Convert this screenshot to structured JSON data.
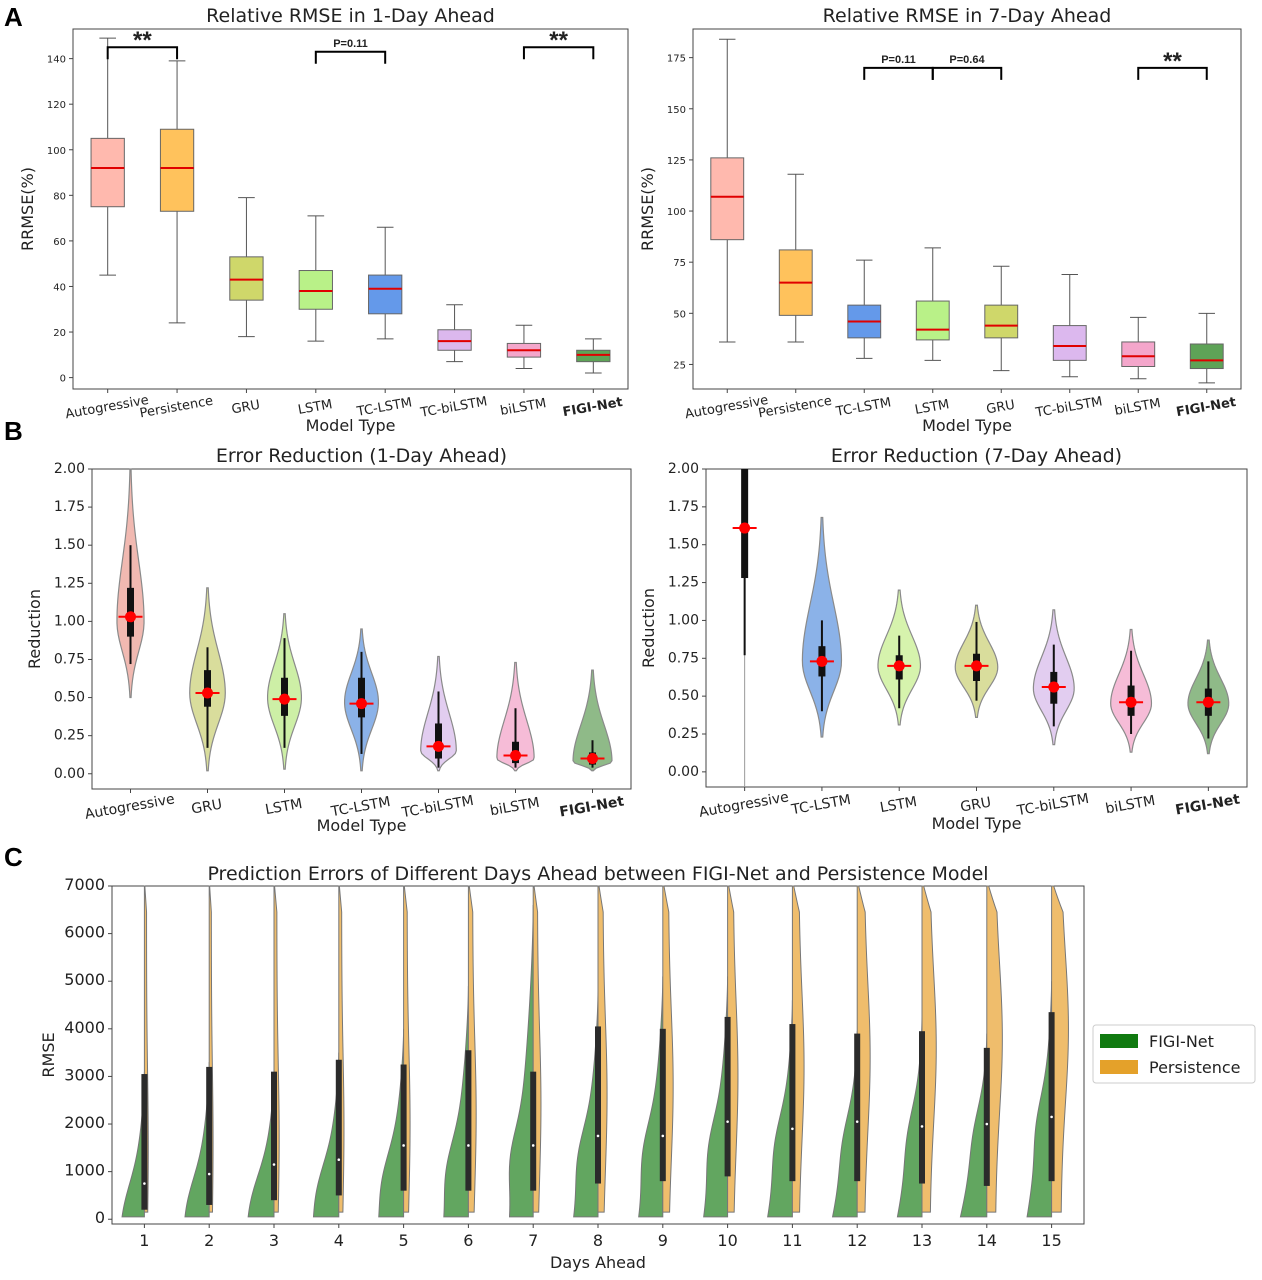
{
  "panels": {
    "a": "A",
    "b": "B",
    "c": "C"
  },
  "chart_data": [
    {
      "type": "box",
      "title": "Relative RMSE in 1-Day Ahead",
      "xlabel": "Model Type",
      "ylabel": "RRMSE(%)",
      "ylim": [
        -5,
        153
      ],
      "yticks": [
        0,
        20,
        40,
        60,
        80,
        100,
        120,
        140
      ],
      "categories": [
        "Autogressive",
        "Persistence",
        "GRU",
        "LSTM",
        "TC-LSTM",
        "TC-biLSTM",
        "biLSTM",
        "FIGI-Net"
      ],
      "bold_category": "FIGI-Net",
      "boxes": [
        {
          "min": 45,
          "q1": 75,
          "median": 92,
          "q3": 105,
          "max": 149,
          "color": "#ffb9ae"
        },
        {
          "min": 24,
          "q1": 73,
          "median": 92,
          "q3": 109,
          "max": 139,
          "color": "#ffc25c"
        },
        {
          "min": 18,
          "q1": 34,
          "median": 43,
          "q3": 53,
          "max": 79,
          "color": "#cfd76a"
        },
        {
          "min": 16,
          "q1": 30,
          "median": 38,
          "q3": 47,
          "max": 71,
          "color": "#b9f188"
        },
        {
          "min": 17,
          "q1": 28,
          "median": 39,
          "q3": 45,
          "max": 66,
          "color": "#6499ea"
        },
        {
          "min": 7,
          "q1": 12,
          "median": 16,
          "q3": 21,
          "max": 32,
          "color": "#dcb8ee"
        },
        {
          "min": 4,
          "q1": 9,
          "median": 12,
          "q3": 15,
          "max": 23,
          "color": "#f4a6cb"
        },
        {
          "min": 2,
          "q1": 7,
          "median": 10,
          "q3": 12,
          "max": 17,
          "color": "#5ea357"
        }
      ],
      "brackets": [
        {
          "from": 0,
          "to": 1,
          "label": "**",
          "y": 145
        },
        {
          "from": 3,
          "to": 4,
          "label": "P=0.11",
          "y": 143
        },
        {
          "from": 6,
          "to": 7,
          "label": "**",
          "y": 145
        }
      ]
    },
    {
      "type": "box",
      "title": "Relative RMSE in 7-Day Ahead",
      "xlabel": "Model Type",
      "ylabel": "RRMSE(%)",
      "ylim": [
        13,
        189
      ],
      "yticks": [
        25,
        50,
        75,
        100,
        125,
        150,
        175
      ],
      "categories": [
        "Autogressive",
        "Persistence",
        "TC-LSTM",
        "LSTM",
        "GRU",
        "TC-biLSTM",
        "biLSTM",
        "FIGI-Net"
      ],
      "bold_category": "FIGI-Net",
      "boxes": [
        {
          "min": 36,
          "q1": 86,
          "median": 107,
          "q3": 126,
          "max": 184,
          "color": "#ffb9ae"
        },
        {
          "min": 36,
          "q1": 49,
          "median": 65,
          "q3": 81,
          "max": 118,
          "color": "#ffc25c"
        },
        {
          "min": 28,
          "q1": 38,
          "median": 46,
          "q3": 54,
          "max": 76,
          "color": "#6499ea"
        },
        {
          "min": 27,
          "q1": 37,
          "median": 42,
          "q3": 56,
          "max": 82,
          "color": "#b9f188"
        },
        {
          "min": 22,
          "q1": 38,
          "median": 44,
          "q3": 54,
          "max": 73,
          "color": "#cfd76a"
        },
        {
          "min": 19,
          "q1": 27,
          "median": 34,
          "q3": 44,
          "max": 69,
          "color": "#dcb8ee"
        },
        {
          "min": 18,
          "q1": 24,
          "median": 29,
          "q3": 36,
          "max": 48,
          "color": "#f4a6cb"
        },
        {
          "min": 16,
          "q1": 23,
          "median": 27,
          "q3": 35,
          "max": 50,
          "color": "#5ea357"
        }
      ],
      "brackets": [
        {
          "from": 2,
          "to": 3,
          "label": "P=0.11",
          "y": 170
        },
        {
          "from": 3,
          "to": 4,
          "label": "P=0.64",
          "y": 170
        },
        {
          "from": 6,
          "to": 7,
          "label": "**",
          "y": 170
        }
      ]
    },
    {
      "type": "violin",
      "title": "Error Reduction (1-Day Ahead)",
      "xlabel": "Model Type",
      "ylabel": "Reduction",
      "ylim": [
        -0.1,
        2.0
      ],
      "yticks": [
        0.0,
        0.25,
        0.5,
        0.75,
        1.0,
        1.25,
        1.5,
        1.75,
        2.0
      ],
      "categories": [
        "Autogressive",
        "GRU",
        "LSTM",
        "TC-LSTM",
        "TC-biLSTM",
        "biLSTM",
        "FIGI-Net"
      ],
      "bold_category": "FIGI-Net",
      "violins": [
        {
          "min": 0.5,
          "max": 2.0,
          "mode": 1.0,
          "width": 0.32,
          "wmin": 0.72,
          "wmax": 1.5,
          "q1": 0.9,
          "q3": 1.22,
          "median": 1.03,
          "color": "#f1b9b1"
        },
        {
          "min": 0.02,
          "max": 1.22,
          "mode": 0.53,
          "width": 0.42,
          "wmin": 0.17,
          "wmax": 0.83,
          "q1": 0.44,
          "q3": 0.68,
          "median": 0.53,
          "color": "#d9dd9c"
        },
        {
          "min": 0.03,
          "max": 1.05,
          "mode": 0.5,
          "width": 0.4,
          "wmin": 0.17,
          "wmax": 0.89,
          "q1": 0.38,
          "q3": 0.63,
          "median": 0.49,
          "color": "#cdefa6"
        },
        {
          "min": 0.02,
          "max": 0.95,
          "mode": 0.47,
          "width": 0.4,
          "wmin": 0.13,
          "wmax": 0.8,
          "q1": 0.37,
          "q3": 0.63,
          "median": 0.46,
          "color": "#8bb2e8"
        },
        {
          "min": 0.02,
          "max": 0.77,
          "mode": 0.15,
          "width": 0.42,
          "wmin": 0.04,
          "wmax": 0.54,
          "q1": 0.1,
          "q3": 0.33,
          "median": 0.18,
          "color": "#e2cdf0"
        },
        {
          "min": 0.02,
          "max": 0.73,
          "mode": 0.1,
          "width": 0.44,
          "wmin": 0.04,
          "wmax": 0.43,
          "q1": 0.07,
          "q3": 0.21,
          "median": 0.12,
          "color": "#f6bcd7"
        },
        {
          "min": 0.02,
          "max": 0.68,
          "mode": 0.08,
          "width": 0.46,
          "wmin": 0.04,
          "wmax": 0.22,
          "q1": 0.06,
          "q3": 0.14,
          "median": 0.1,
          "color": "#8fba88"
        }
      ]
    },
    {
      "type": "violin",
      "title": "Error Reduction (7-Day Ahead)",
      "xlabel": "Model Type",
      "ylabel": "Reduction",
      "ylim": [
        -0.1,
        2.0
      ],
      "yticks": [
        0.0,
        0.25,
        0.5,
        0.75,
        1.0,
        1.25,
        1.5,
        1.75,
        2.0
      ],
      "categories": [
        "Autogressive",
        "TC-LSTM",
        "LSTM",
        "GRU",
        "TC-biLSTM",
        "biLSTM",
        "FIGI-Net"
      ],
      "bold_category": "FIGI-Net",
      "violins": [
        {
          "min": -0.1,
          "max": 2.0,
          "mode": 1.6,
          "width": 0.02,
          "wmin": 0.77,
          "wmax": 2.0,
          "q1": 1.28,
          "q3": 2.0,
          "median": 1.61,
          "color": "#f1b9b1"
        },
        {
          "min": 0.23,
          "max": 1.68,
          "mode": 0.73,
          "width": 0.46,
          "wmin": 0.4,
          "wmax": 1.0,
          "q1": 0.63,
          "q3": 0.83,
          "median": 0.73,
          "color": "#8bb2e8"
        },
        {
          "min": 0.31,
          "max": 1.2,
          "mode": 0.7,
          "width": 0.5,
          "wmin": 0.42,
          "wmax": 0.9,
          "q1": 0.61,
          "q3": 0.77,
          "median": 0.7,
          "color": "#d6f3ad"
        },
        {
          "min": 0.36,
          "max": 1.1,
          "mode": 0.69,
          "width": 0.5,
          "wmin": 0.47,
          "wmax": 0.99,
          "q1": 0.6,
          "q3": 0.78,
          "median": 0.7,
          "color": "#d9dd9c"
        },
        {
          "min": 0.18,
          "max": 1.07,
          "mode": 0.55,
          "width": 0.48,
          "wmin": 0.3,
          "wmax": 0.84,
          "q1": 0.45,
          "q3": 0.66,
          "median": 0.56,
          "color": "#e2cdf0"
        },
        {
          "min": 0.13,
          "max": 0.94,
          "mode": 0.45,
          "width": 0.48,
          "wmin": 0.25,
          "wmax": 0.8,
          "q1": 0.37,
          "q3": 0.57,
          "median": 0.46,
          "color": "#f6bcd7"
        },
        {
          "min": 0.12,
          "max": 0.87,
          "mode": 0.45,
          "width": 0.48,
          "wmin": 0.22,
          "wmax": 0.73,
          "q1": 0.37,
          "q3": 0.55,
          "median": 0.46,
          "color": "#8fba88"
        }
      ]
    },
    {
      "type": "split-violin",
      "title": "Prediction Errors of Different Days Ahead between FIGI-Net and Persistence Model",
      "xlabel": "Days Ahead",
      "ylabel": "RMSE",
      "ylim": [
        -100,
        7000
      ],
      "yticks": [
        0,
        1000,
        2000,
        3000,
        4000,
        5000,
        6000,
        7000
      ],
      "categories": [
        "1",
        "2",
        "3",
        "4",
        "5",
        "6",
        "7",
        "8",
        "9",
        "10",
        "11",
        "12",
        "13",
        "14",
        "15"
      ],
      "series": [
        {
          "name": "FIGI-Net",
          "color": "#62a660",
          "legend_color": "#107a10",
          "values_max": [
            3100,
            3300,
            3100,
            3500,
            4000,
            4900,
            6600,
            4800,
            5100,
            5100,
            4600,
            3950,
            4250,
            3900,
            5000
          ],
          "values_mode": [
            400,
            500,
            600,
            800,
            1000,
            1200,
            1400,
            1500,
            1600,
            1700,
            1800,
            1900,
            2000,
            2100,
            2200
          ],
          "width": [
            0.36,
            0.4,
            0.44,
            0.46,
            0.48,
            0.5,
            0.5,
            0.52,
            0.52,
            0.52,
            0.54,
            0.54,
            0.54,
            0.58,
            0.54
          ]
        },
        {
          "name": "Persistence",
          "color": "#efbd6c",
          "legend_color": "#e4a12a",
          "values_mode": [
            1500,
            1600,
            1700,
            1900,
            2000,
            2200,
            2400,
            2600,
            2800,
            3000,
            3200,
            3400,
            3600,
            3800,
            4000
          ],
          "width": [
            0.06,
            0.06,
            0.08,
            0.08,
            0.1,
            0.12,
            0.12,
            0.14,
            0.16,
            0.16,
            0.18,
            0.2,
            0.22,
            0.24,
            0.26
          ]
        }
      ],
      "medians": [
        750,
        950,
        1150,
        1250,
        1550,
        1550,
        1550,
        1750,
        1750,
        2050,
        1900,
        2050,
        1950,
        2000,
        2150
      ],
      "iqr_low": [
        200,
        300,
        400,
        500,
        600,
        600,
        600,
        750,
        800,
        900,
        800,
        800,
        750,
        700,
        800
      ],
      "iqr_high": [
        3050,
        3200,
        3100,
        3350,
        3250,
        3550,
        3100,
        4050,
        4000,
        4250,
        4100,
        3900,
        3950,
        3600,
        4350
      ]
    }
  ]
}
